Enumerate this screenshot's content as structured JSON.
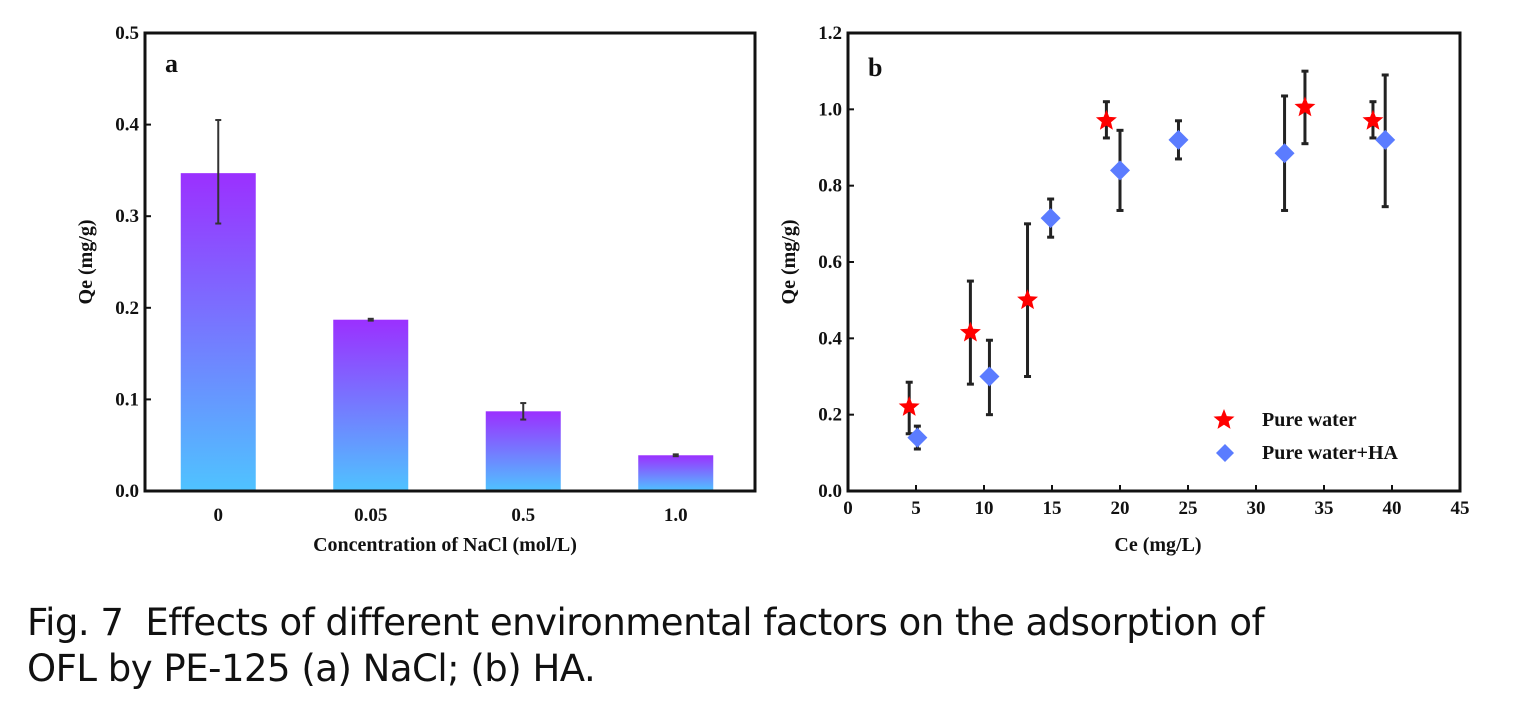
{
  "caption": {
    "fig_label": "Fig. 7",
    "line1": "Effects of different environmental factors on the adsorption of",
    "line2": "OFL by PE-125 (a) NaCl; (b) HA."
  },
  "chart_data": [
    {
      "type": "bar",
      "panel_label": "a",
      "title": "",
      "xlabel": "Concentration of NaCl (mol/L)",
      "ylabel": "Qe (mg/g)",
      "ylim": [
        0,
        0.5
      ],
      "yticks": [
        "0.0",
        "0.1",
        "0.2",
        "0.3",
        "0.4",
        "0.5"
      ],
      "categories": [
        "0",
        "0.05",
        "0.5",
        "1.0"
      ],
      "values": [
        0.347,
        0.187,
        0.087,
        0.039
      ],
      "error_low": [
        0.292,
        0.186,
        0.078,
        0.038
      ],
      "error_high": [
        0.405,
        0.188,
        0.096,
        0.04
      ],
      "bar_gradient": {
        "top": "#9b30ff",
        "bottom": "#4fc3ff"
      },
      "grid": false
    },
    {
      "type": "scatter",
      "panel_label": "b",
      "title": "",
      "xlabel": "Ce (mg/L)",
      "ylabel": "Qe (mg/g)",
      "xlim": [
        0,
        45
      ],
      "ylim": [
        0,
        1.2
      ],
      "xticks": [
        "0",
        "5",
        "10",
        "15",
        "20",
        "25",
        "30",
        "35",
        "40",
        "45"
      ],
      "yticks": [
        "0.0",
        "0.2",
        "0.4",
        "0.6",
        "0.8",
        "1.0",
        "1.2"
      ],
      "legend_position": "bottom-right",
      "grid": false,
      "series": [
        {
          "name": "Pure water",
          "marker": "star",
          "color": "#ff0000",
          "x": [
            4.5,
            9.0,
            13.2,
            19.0,
            33.6,
            38.6
          ],
          "y": [
            0.22,
            0.415,
            0.5,
            0.97,
            1.005,
            0.97
          ],
          "y_low": [
            0.15,
            0.28,
            0.3,
            0.925,
            0.91,
            0.925
          ],
          "y_high": [
            0.285,
            0.55,
            0.7,
            1.02,
            1.1,
            1.02
          ]
        },
        {
          "name": "Pure water+HA",
          "marker": "diamond",
          "color": "#5b7cff",
          "x": [
            5.1,
            10.4,
            14.9,
            20.0,
            24.3,
            32.1,
            39.5
          ],
          "y": [
            0.14,
            0.3,
            0.715,
            0.84,
            0.92,
            0.885,
            0.92
          ],
          "y_low": [
            0.11,
            0.2,
            0.665,
            0.735,
            0.87,
            0.735,
            0.745
          ],
          "y_high": [
            0.17,
            0.395,
            0.765,
            0.945,
            0.97,
            1.035,
            1.09
          ]
        }
      ]
    }
  ]
}
